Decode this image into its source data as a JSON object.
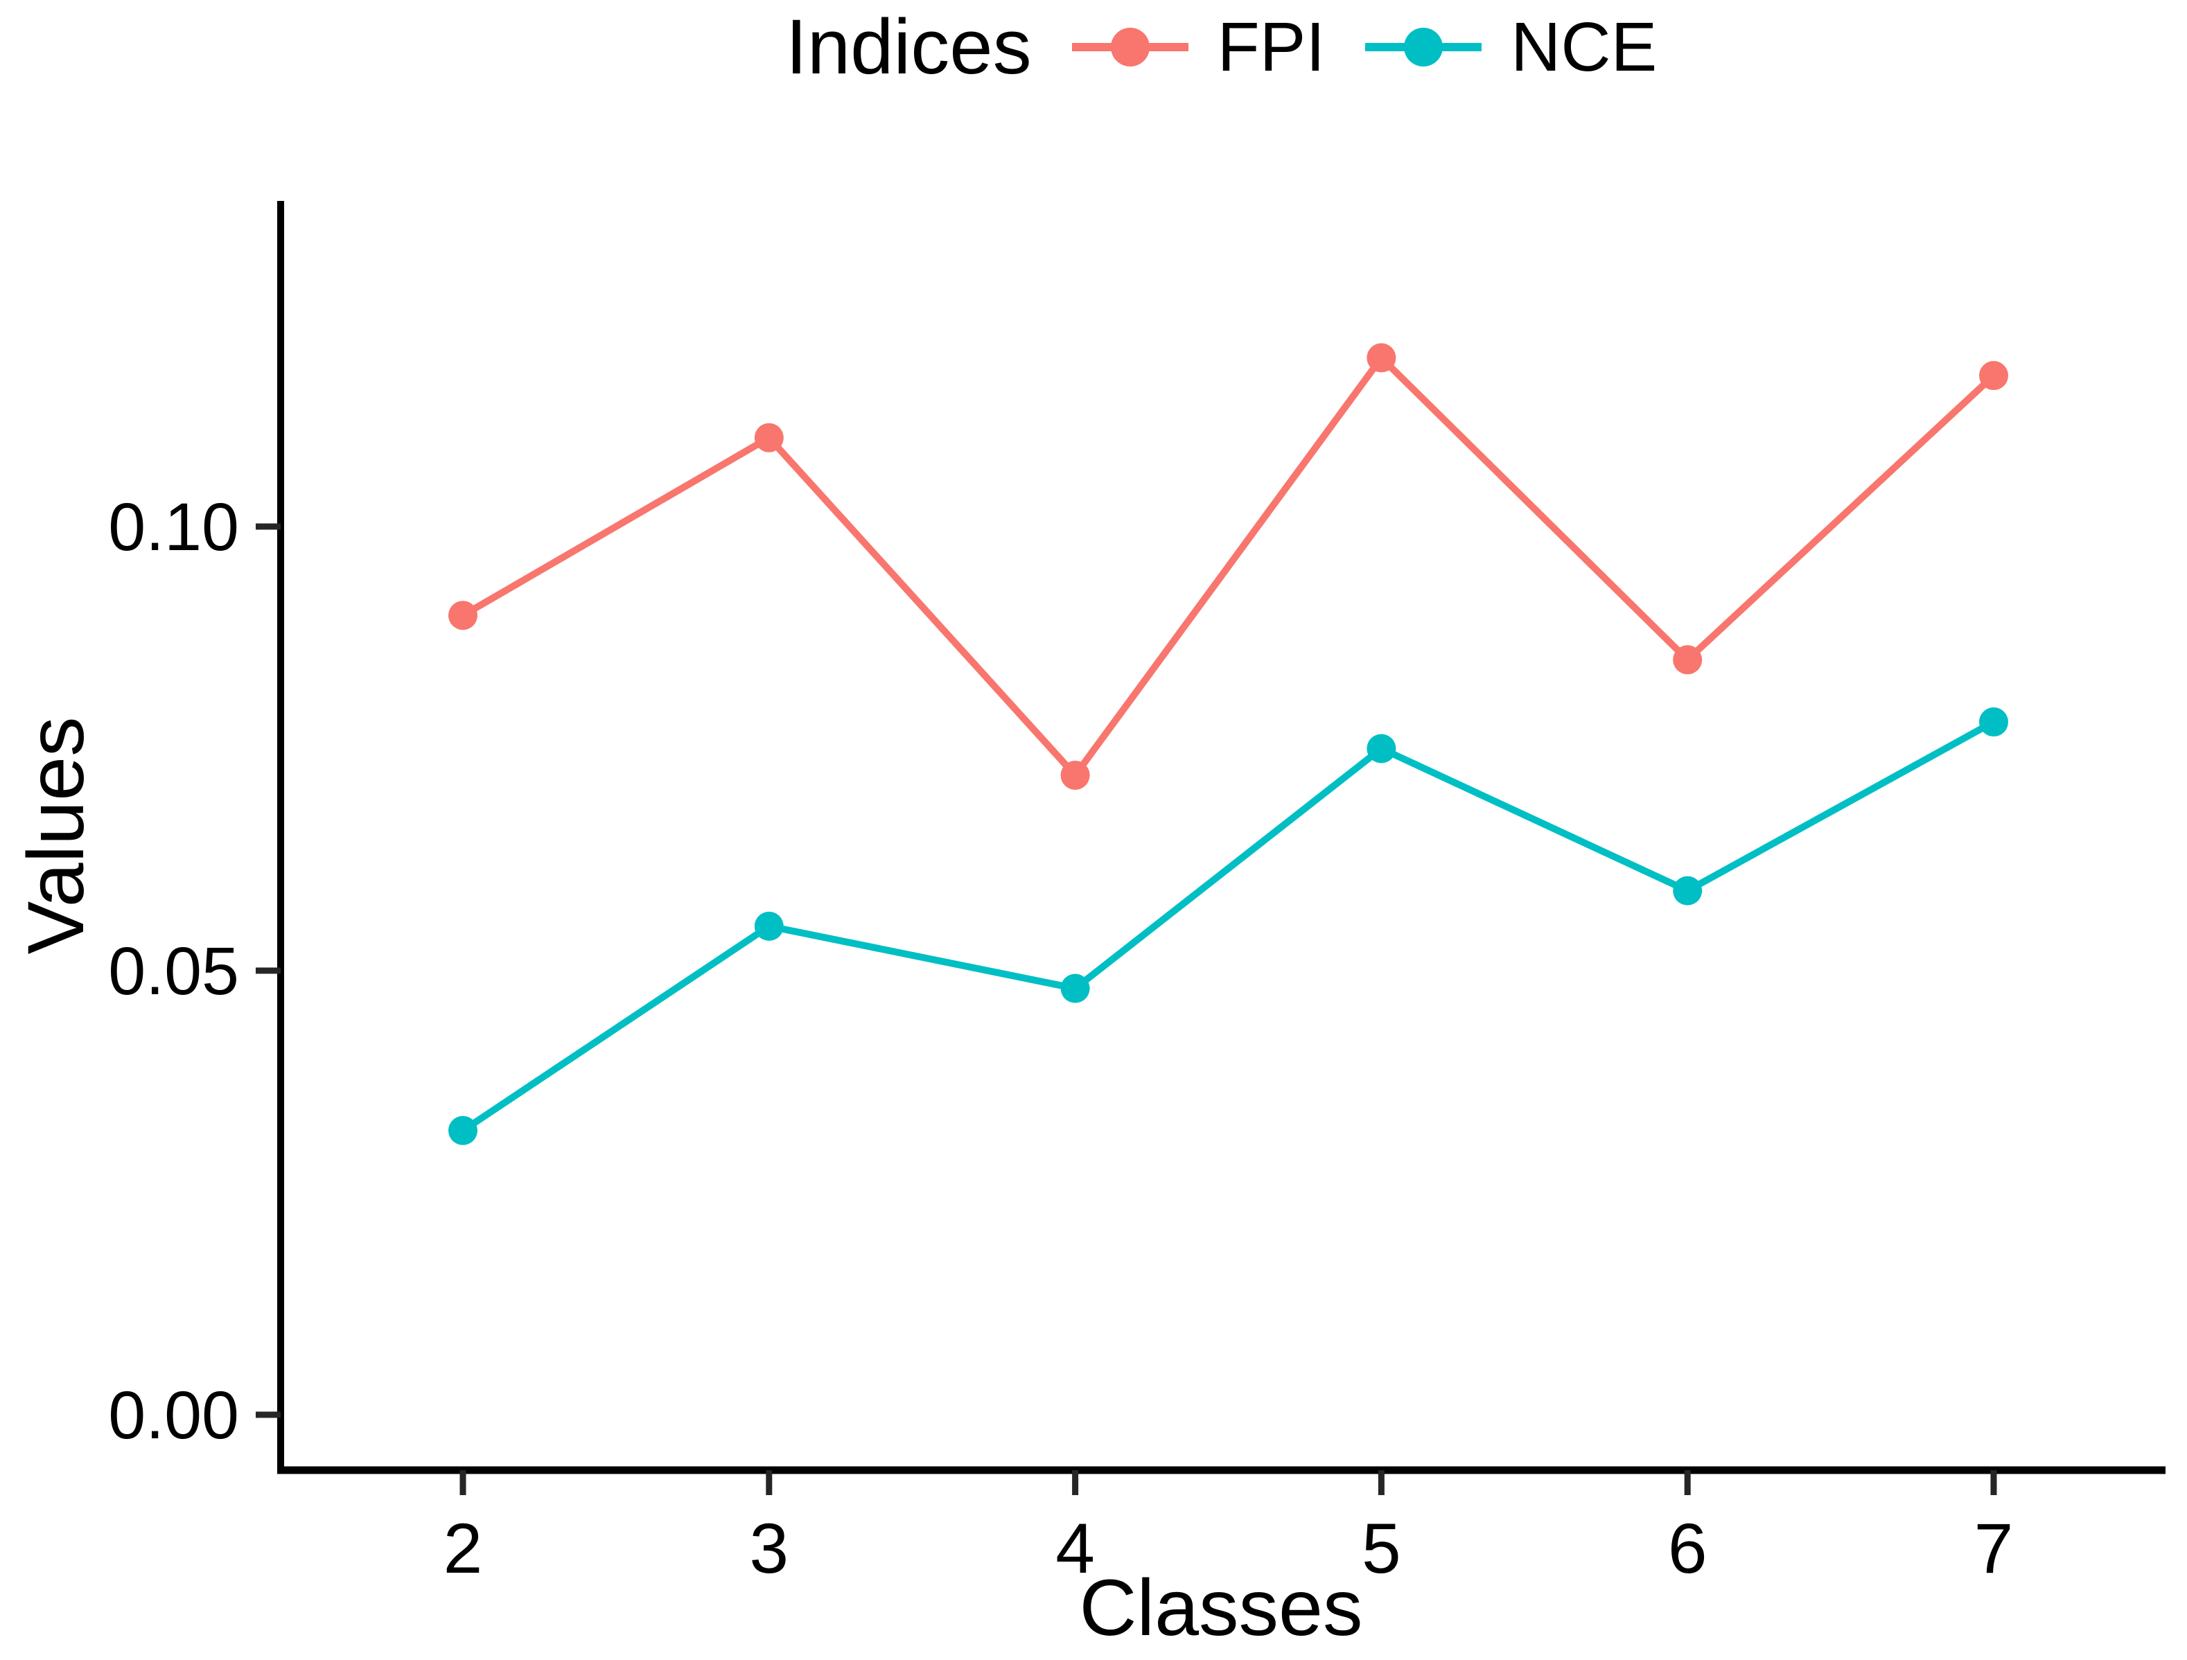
{
  "figure": {
    "background": "#ffffff",
    "axis_color": "#000000",
    "tick_color": "#262626",
    "text_color": "#000000"
  },
  "chart_data": {
    "type": "line",
    "title": "",
    "legend_title": "Indices",
    "legend_position": "top-center",
    "xlabel": "Classes",
    "ylabel": "Values",
    "categories": [
      "2",
      "3",
      "4",
      "5",
      "6",
      "7"
    ],
    "x_numeric": [
      2,
      3,
      4,
      5,
      6,
      7
    ],
    "series": [
      {
        "name": "FPI",
        "color": "#F8766D",
        "values": [
          0.09,
          0.11,
          0.072,
          0.119,
          0.085,
          0.117
        ]
      },
      {
        "name": "NCE",
        "color": "#00BFC4",
        "values": [
          0.032,
          0.055,
          0.048,
          0.075,
          0.059,
          0.078
        ]
      }
    ],
    "y_ticks": [
      {
        "value": 0.0,
        "label": "0.00"
      },
      {
        "value": 0.05,
        "label": "0.05"
      },
      {
        "value": 0.1,
        "label": "0.10"
      }
    ],
    "ylim": [
      -0.006,
      0.137
    ],
    "grid": false,
    "marker": "circle"
  }
}
